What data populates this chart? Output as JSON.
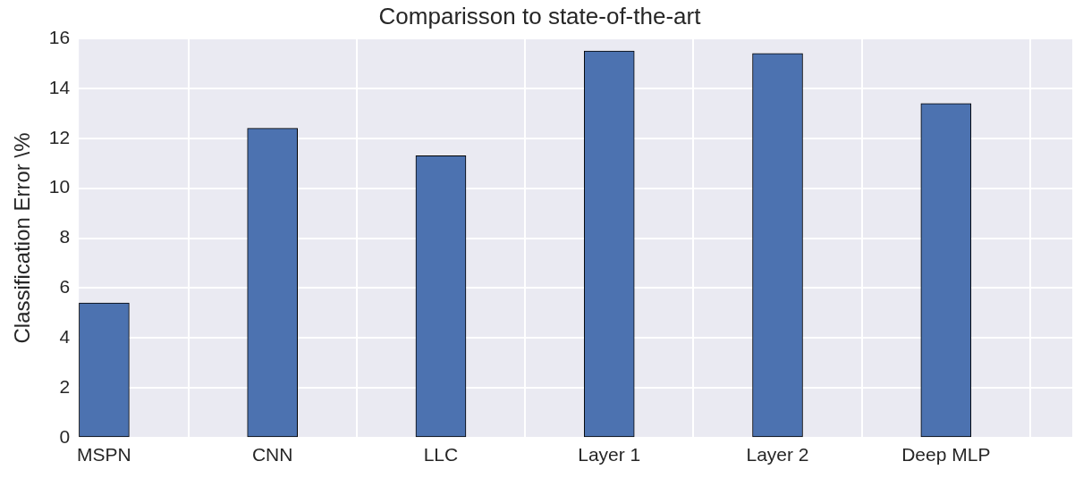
{
  "chart_data": {
    "type": "bar",
    "title": "Comparisson to state-of-the-art",
    "ylabel": "Classification Error \\%",
    "categories": [
      "MSPN",
      "CNN",
      "LLC",
      "Layer 1",
      "Layer 2",
      "Deep MLP"
    ],
    "values": [
      5.4,
      12.4,
      11.3,
      15.5,
      15.4,
      13.4
    ],
    "color": "#4c72b0",
    "ylim": [
      0,
      16
    ],
    "yticks": [
      0,
      2,
      4,
      6,
      8,
      10,
      12,
      14,
      16
    ],
    "grid": true
  }
}
